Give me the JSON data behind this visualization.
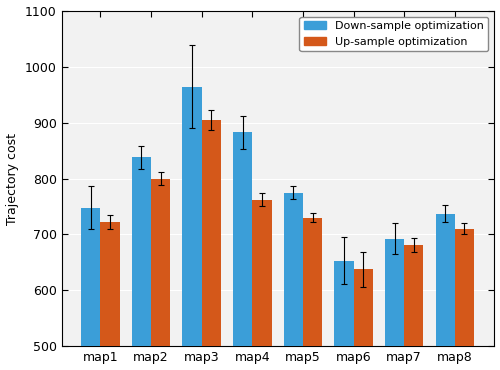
{
  "categories": [
    "map1",
    "map2",
    "map3",
    "map4",
    "map5",
    "map6",
    "map7",
    "map8"
  ],
  "down_sample": [
    748,
    838,
    965,
    883,
    775,
    653,
    692,
    737
  ],
  "up_sample": [
    722,
    800,
    905,
    762,
    730,
    637,
    681,
    710
  ],
  "down_sample_err": [
    38,
    20,
    75,
    30,
    12,
    42,
    28,
    15
  ],
  "up_sample_err": [
    13,
    12,
    18,
    12,
    8,
    32,
    12,
    10
  ],
  "bar_color_down": "#3B9ED8",
  "bar_color_up": "#D4581A",
  "ylabel": "Trajectory cost",
  "ylim": [
    500,
    1100
  ],
  "yticks": [
    500,
    600,
    700,
    800,
    900,
    1000,
    1100
  ],
  "legend_labels": [
    "Down-sample optimization",
    "Up-sample optimization"
  ],
  "bar_width": 0.38,
  "figsize": [
    5.0,
    3.7
  ],
  "dpi": 100,
  "bg_color": "#F2F2F2",
  "fig_bg_color": "#FFFFFF"
}
